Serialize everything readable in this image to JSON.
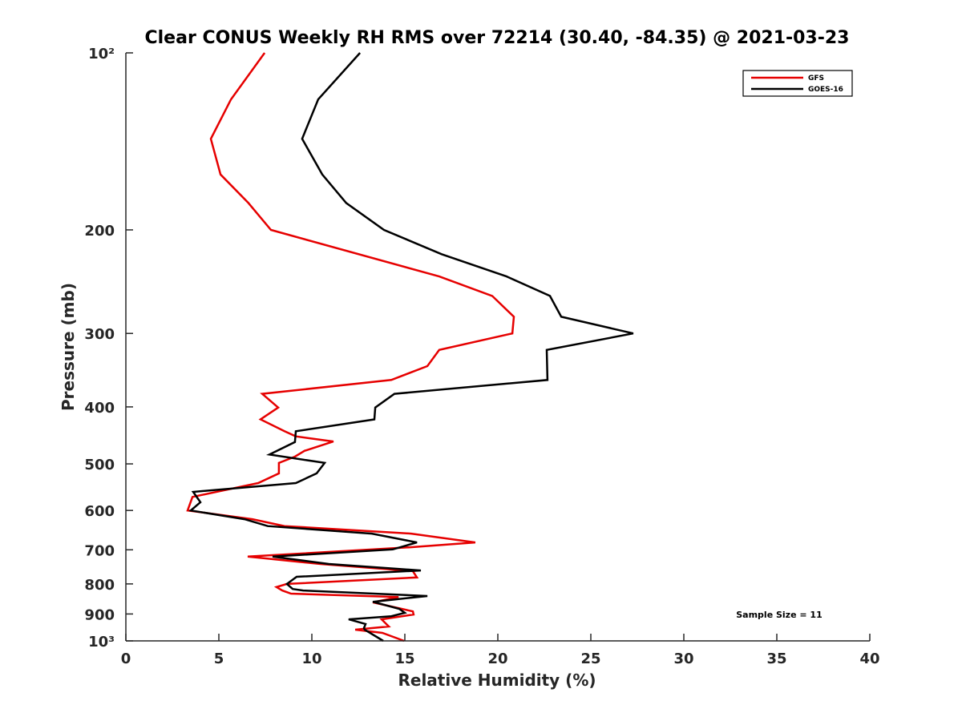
{
  "chart_data": {
    "type": "line",
    "title": "Clear CONUS Weekly RH RMS over 72214 (30.40, -84.35) @ 2021-03-23",
    "xlabel": "Relative Humidity (%)",
    "ylabel": "Pressure (mb)",
    "xlim": [
      0,
      40
    ],
    "ylim": [
      100,
      1000
    ],
    "yscale": "log",
    "y_reversed": true,
    "grid": false,
    "xticks": [
      0,
      5,
      10,
      15,
      20,
      25,
      30,
      35,
      40
    ],
    "xtick_labels": [
      "0",
      "5",
      "10",
      "15",
      "20",
      "25",
      "30",
      "35",
      "40"
    ],
    "yticks": [
      100,
      200,
      300,
      400,
      500,
      600,
      700,
      800,
      900,
      1000
    ],
    "ytick_labels": [
      "10²",
      "200",
      "300",
      "400",
      "500",
      "600",
      "700",
      "800",
      "900",
      "10³"
    ],
    "legend": {
      "placement": "top-right",
      "entries": [
        "GFS",
        "GOES-16"
      ]
    },
    "annotation": "Sample Size = 11",
    "series": [
      {
        "name": "GFS",
        "color": "#e60000",
        "rh": [
          7.46,
          5.65,
          4.57,
          5.09,
          6.59,
          7.8,
          16.85,
          19.7,
          20.86,
          20.78,
          16.85,
          16.21,
          14.27,
          7.33,
          8.19,
          7.24,
          8.53,
          9.14,
          11.16,
          9.61,
          9.09,
          8.23,
          8.23,
          7.11,
          3.58,
          3.32,
          6.81,
          8.53,
          15.34,
          18.79,
          15.3,
          6.55,
          10.47,
          15.43,
          15.65,
          8.66,
          8.1,
          8.41,
          8.88,
          14.66,
          13.28,
          15.43,
          15.47,
          13.75,
          14.14,
          12.33,
          13.79,
          14.96
        ],
        "pressure": [
          100,
          120,
          140,
          161,
          180,
          200,
          240,
          259,
          281,
          300,
          320,
          341,
          360,
          380,
          401,
          420,
          440,
          449,
          458,
          475,
          486,
          498,
          519,
          539,
          569,
          600,
          621,
          638,
          657,
          680,
          693,
          719,
          740,
          761,
          780,
          800,
          810,
          821,
          831,
          842,
          860,
          891,
          902,
          919,
          945,
          957,
          969,
          1000
        ]
      },
      {
        "name": "GOES-16",
        "color": "#000000",
        "rh": [
          12.59,
          10.34,
          9.48,
          10.56,
          11.85,
          13.88,
          16.98,
          20.47,
          22.8,
          23.41,
          27.28,
          22.63,
          22.67,
          14.44,
          13.41,
          13.36,
          9.14,
          9.09,
          7.72,
          10.69,
          10.26,
          9.14,
          3.62,
          4.01,
          3.49,
          6.38,
          7.63,
          13.23,
          15.65,
          14.35,
          7.89,
          10.91,
          15.86,
          9.18,
          8.66,
          8.97,
          9.53,
          16.21,
          13.28,
          14.7,
          15.0,
          14.27,
          11.98,
          12.89,
          12.8,
          12.84,
          13.84
        ],
        "pressure": [
          100,
          120,
          140,
          161,
          180,
          200,
          220,
          240,
          259,
          281,
          300,
          320,
          360,
          380,
          401,
          420,
          440,
          459,
          482,
          498,
          519,
          539,
          558,
          581,
          600,
          621,
          638,
          657,
          680,
          699,
          719,
          740,
          759,
          778,
          800,
          816,
          821,
          839,
          858,
          882,
          896,
          908,
          919,
          936,
          951,
          957,
          1000
        ]
      }
    ]
  }
}
